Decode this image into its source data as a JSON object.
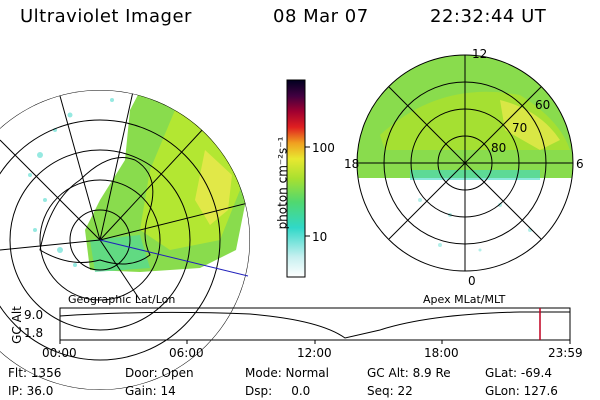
{
  "header": {
    "instrument": "Ultraviolet Imager",
    "date": "08 Mar 07",
    "time": "22:32:44 UT"
  },
  "left_panel": {
    "label": "Geographic Lat/Lon",
    "background": "#ffffff",
    "line_color": "#000000",
    "track_color": "#2222bb"
  },
  "right_panel": {
    "label": "Apex MLat/MLT",
    "mlt_labels": {
      "top": "12",
      "left": "18",
      "right": "6",
      "bottom": "0"
    },
    "lat_labels": [
      "60",
      "70",
      "80"
    ]
  },
  "colorbar": {
    "unit_label": "photon cm⁻²s⁻¹",
    "ticks": [
      "100",
      "10"
    ],
    "colors": [
      "#ffffff",
      "#c8f0f0",
      "#30d8c8",
      "#50d870",
      "#a8e030",
      "#e8e830",
      "#f0a020",
      "#e02020",
      "#a00030",
      "#400040",
      "#000020"
    ]
  },
  "altitude_plot": {
    "ylabel": "GC Alt",
    "yticks": [
      "9.0",
      "1.8"
    ],
    "xticks": [
      "00:00",
      "06:00",
      "12:00",
      "18:00",
      "23:59"
    ],
    "marker_color": "#c00020"
  },
  "status": {
    "row1": [
      {
        "label": "Flt: 1356"
      },
      {
        "label": "Door: Open"
      },
      {
        "label": "Mode: Normal"
      },
      {
        "label": "GC Alt: 8.9 Re"
      },
      {
        "label": "GLat: -69.4"
      }
    ],
    "row2": [
      {
        "label": "IP: 36.0"
      },
      {
        "label": "Gain: 14"
      },
      {
        "label": "Dsp:     0.0"
      },
      {
        "label": "Seq: 22"
      },
      {
        "label": "GLon: 127.6"
      }
    ]
  }
}
